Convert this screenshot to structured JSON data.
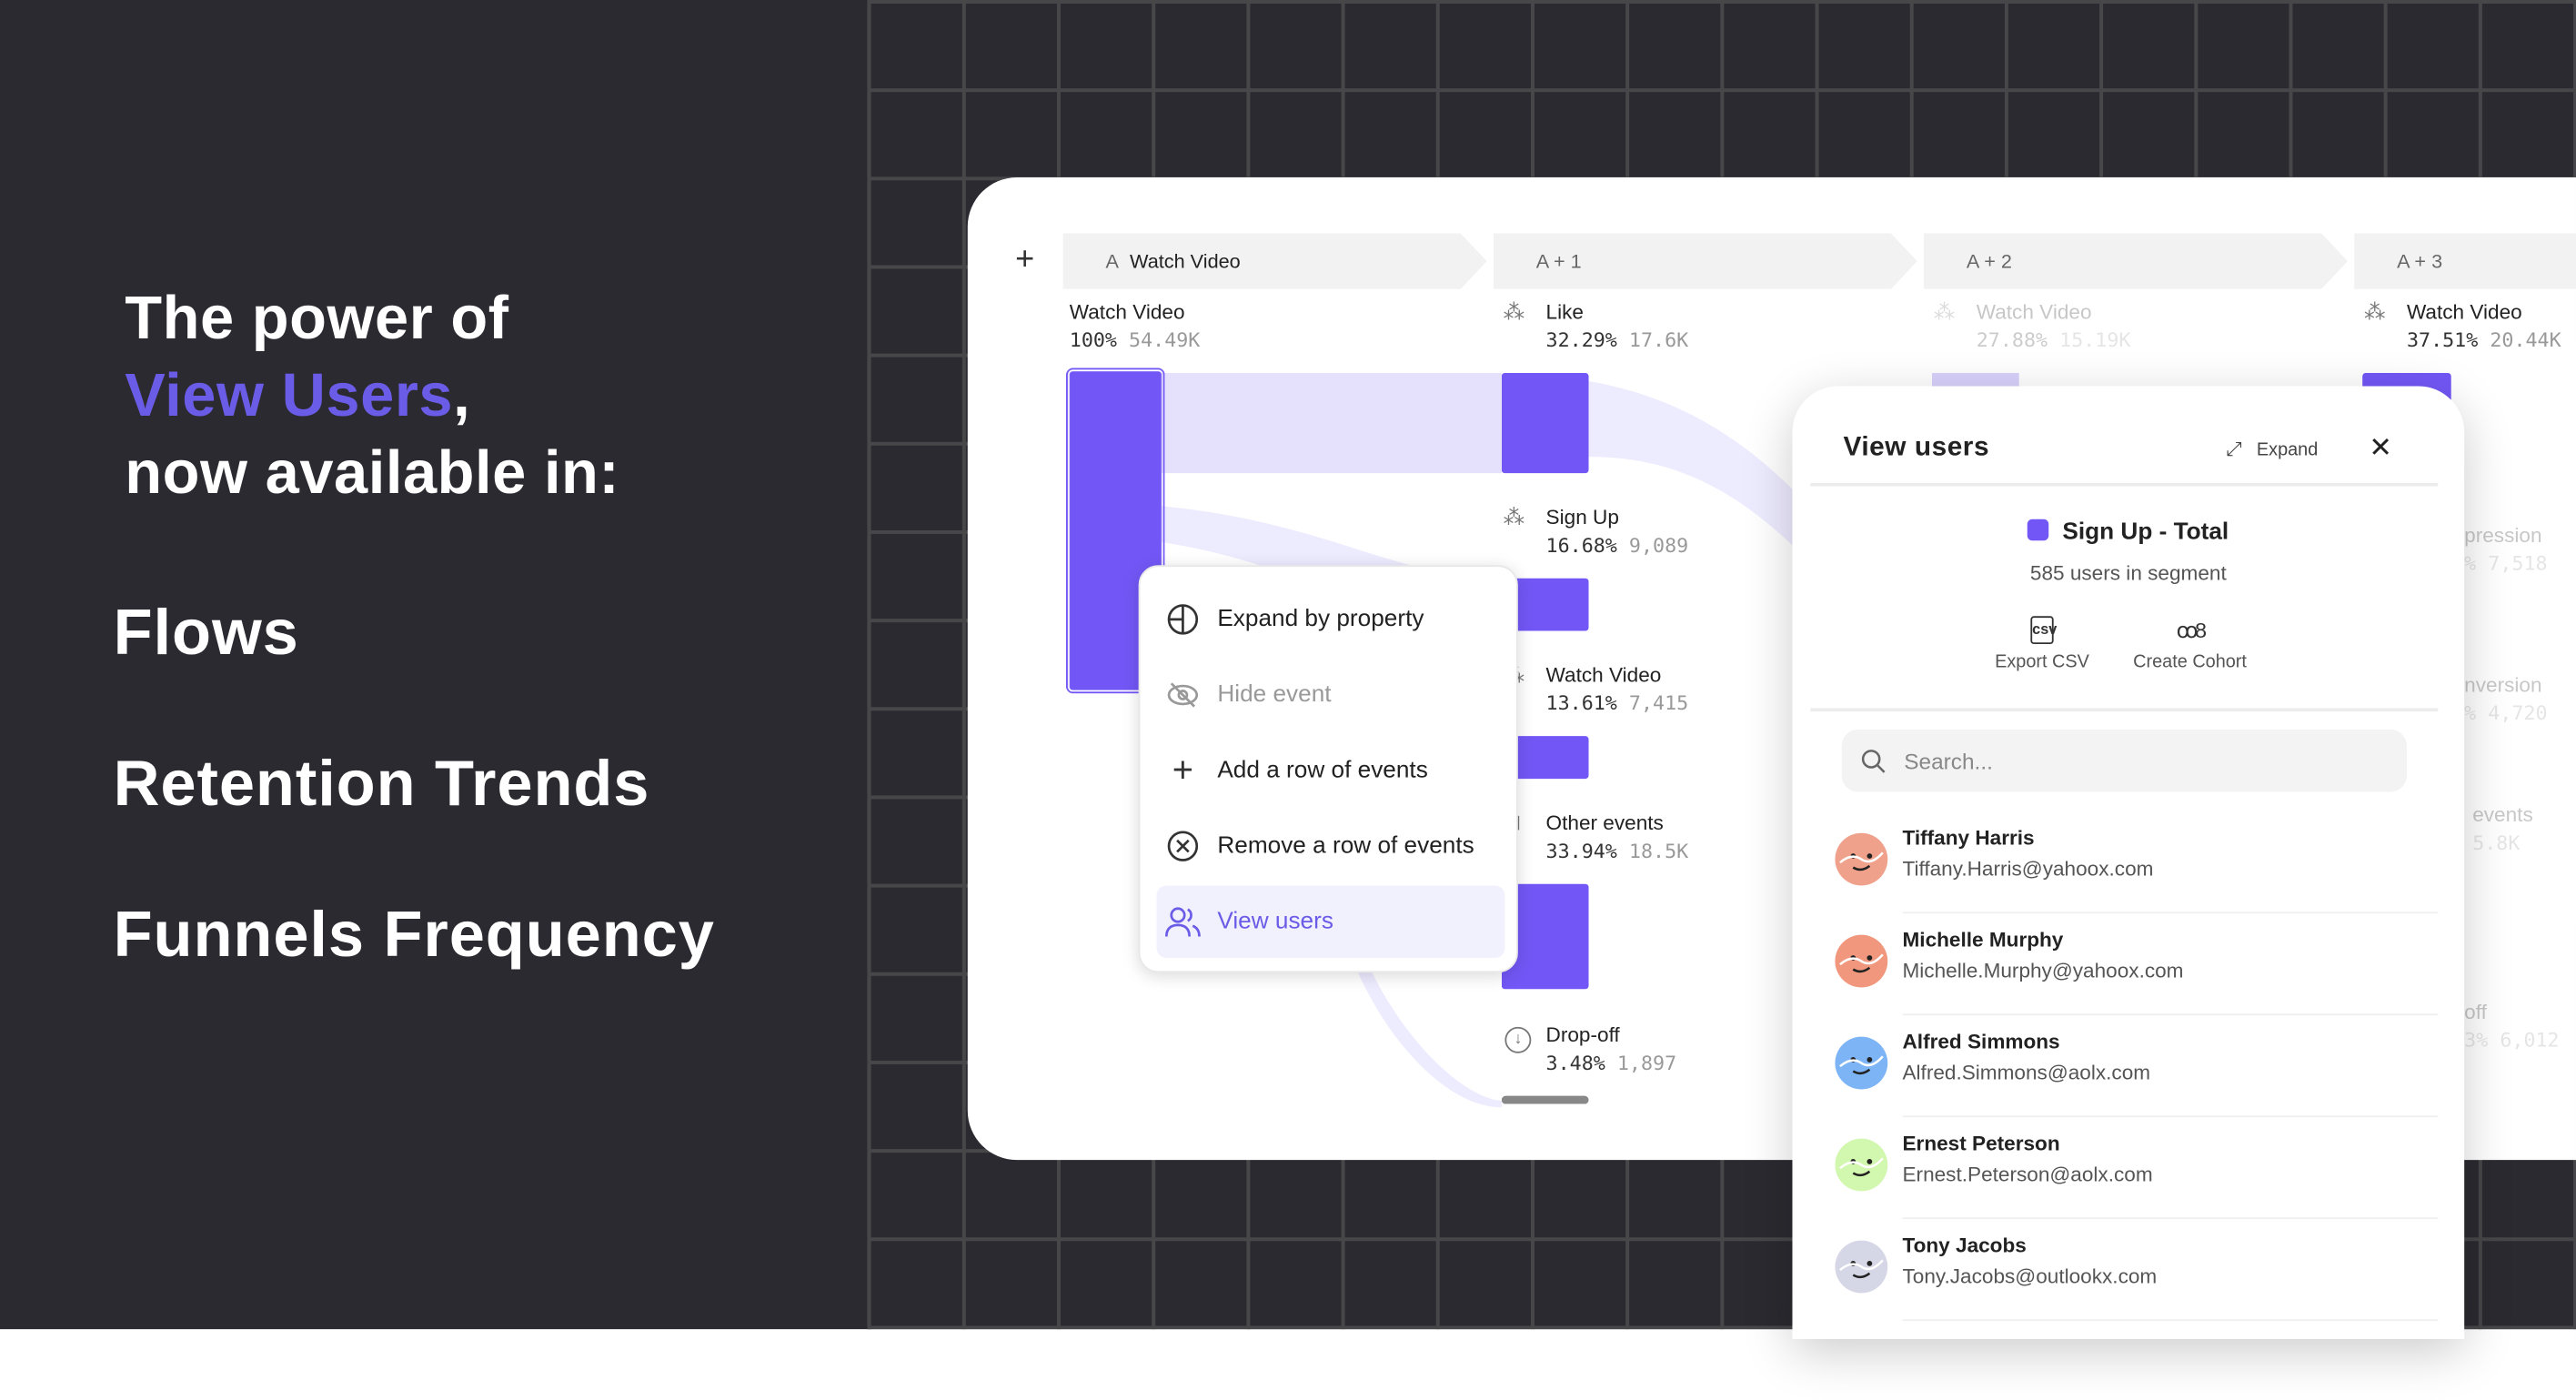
{
  "hero": {
    "line1": "The power of",
    "accent": "View Users",
    "comma": ",",
    "line3": "now available in:",
    "accent_color": "#6b5ce7"
  },
  "features": [
    "Flows",
    "Retention Trends",
    "Funnels Frequency"
  ],
  "flow": {
    "add_icon": "plus-icon",
    "tabs": [
      {
        "prefix": "A",
        "label": "Watch Video"
      },
      {
        "label": "A + 1"
      },
      {
        "label": "A + 2"
      },
      {
        "label": "A + 3"
      }
    ],
    "start": {
      "label": "Watch Video",
      "pct": "100%",
      "count": "54.49K"
    },
    "step1": [
      {
        "label": "Like",
        "pct": "32.29%",
        "count": "17.6K",
        "icon": "cursor-click-icon"
      },
      {
        "label": "Sign Up",
        "pct": "16.68%",
        "count": "9,089",
        "icon": "cursor-click-icon"
      },
      {
        "label": "Watch Video",
        "pct": "13.61%",
        "count": "7,415",
        "icon": "cursor-click-icon"
      },
      {
        "label": "Other events",
        "pct": "33.94%",
        "count": "18.5K",
        "icon": "grid-icon"
      },
      {
        "label": "Drop-off",
        "pct": "3.48%",
        "count": "1,897",
        "icon": "arrow-down-circle-icon"
      }
    ],
    "step2": [
      {
        "label": "Watch Video",
        "pct": "27.88%",
        "count": "15.19K"
      }
    ],
    "step3": [
      {
        "label": "Watch Video",
        "pct": "37.51%",
        "count": "20.44K"
      },
      {
        "label": "pression",
        "pct": "%",
        "count": "7,518"
      },
      {
        "label": "nversion",
        "pct": "%",
        "count": "4,720"
      },
      {
        "label": "events",
        "pct": "",
        "count": "5.8K"
      },
      {
        "label": "off",
        "pct": "3%",
        "count": "6,012"
      }
    ],
    "bar_color": "#7357f6",
    "ribbon_color": "#e3defc"
  },
  "menu": {
    "items": [
      {
        "label": "Expand by property",
        "icon": "pie-chart-icon",
        "state": "normal"
      },
      {
        "label": "Hide event",
        "icon": "eye-off-icon",
        "state": "disabled"
      },
      {
        "label": "Add a row of events",
        "icon": "plus-icon",
        "state": "normal"
      },
      {
        "label": "Remove a row of events",
        "icon": "x-circle-icon",
        "state": "normal"
      },
      {
        "label": "View users",
        "icon": "users-icon",
        "state": "selected"
      }
    ]
  },
  "panel": {
    "title": "View users",
    "expand_label": "Expand",
    "segment_name": "Sign Up - Total",
    "segment_count": "585 users in segment",
    "export_label": "Export CSV",
    "cohort_label": "Create Cohort",
    "search_placeholder": "Search...",
    "users": [
      {
        "name": "Tiffany Harris",
        "email": "Tiffany.Harris@yahoox.com",
        "color": "#f0a18b"
      },
      {
        "name": "Michelle Murphy",
        "email": "Michelle.Murphy@yahoox.com",
        "color": "#f0977d"
      },
      {
        "name": "Alfred Simmons",
        "email": "Alfred.Simmons@aolx.com",
        "color": "#7db4f5"
      },
      {
        "name": "Ernest Peterson",
        "email": "Ernest.Peterson@aolx.com",
        "color": "#d2f7ae"
      },
      {
        "name": "Tony Jacobs",
        "email": "Tony.Jacobs@outlookx.com",
        "color": "#d5d7e6"
      }
    ]
  }
}
